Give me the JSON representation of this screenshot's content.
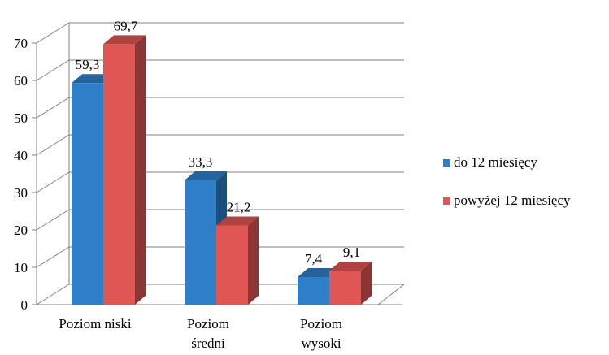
{
  "chart_data": {
    "type": "bar",
    "title": "",
    "xlabel": "",
    "ylabel": "",
    "categories": [
      "Poziom niski",
      "Poziom średni",
      "Poziom wysoki"
    ],
    "category_lines": [
      [
        "Poziom niski"
      ],
      [
        "Poziom",
        "średni"
      ],
      [
        "Poziom",
        "wysoki"
      ]
    ],
    "series": [
      {
        "name": "do 12 miesięcy",
        "values": [
          59.3,
          33.3,
          7.4
        ],
        "labels": [
          "59,3",
          "33,3",
          "7,4"
        ],
        "color": "#2e7fc8"
      },
      {
        "name": "powyżej 12 miesięcy",
        "values": [
          69.7,
          21.2,
          9.1
        ],
        "labels": [
          "69,7",
          "21,2",
          "9,1"
        ],
        "color": "#e05654"
      }
    ],
    "ylim": [
      0,
      70
    ],
    "yticks": [
      "0",
      "10",
      "20",
      "30",
      "40",
      "50",
      "60",
      "70"
    ],
    "grid": true,
    "style": "3d-clustered-column",
    "legend_position": "right"
  }
}
